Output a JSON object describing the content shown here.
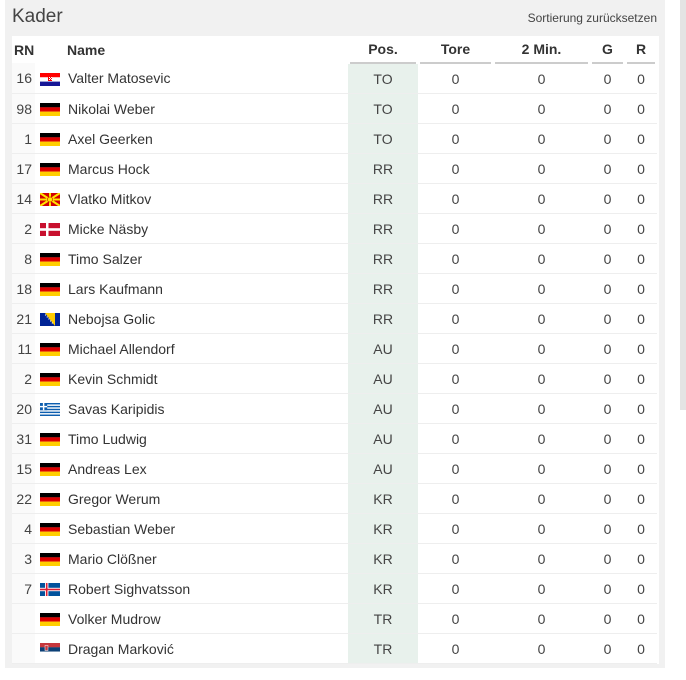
{
  "header": {
    "title": "Kader",
    "reset_link": "Sortierung zurücksetzen"
  },
  "table": {
    "columns": [
      "RN",
      "Name",
      "Pos.",
      "Tore",
      "2 Min.",
      "G",
      "R"
    ],
    "rows": [
      [
        16,
        "Valter Matosevic",
        "TO",
        0,
        0,
        0,
        0
      ],
      [
        98,
        "Nikolai Weber",
        "TO",
        0,
        0,
        0,
        0
      ],
      [
        1,
        "Axel Geerken",
        "TO",
        0,
        0,
        0,
        0
      ],
      [
        17,
        "Marcus Hock",
        "RR",
        0,
        0,
        0,
        0
      ],
      [
        14,
        "Vlatko Mitkov",
        "RR",
        0,
        0,
        0,
        0
      ],
      [
        2,
        "Micke Näsby",
        "RR",
        0,
        0,
        0,
        0
      ],
      [
        8,
        "Timo Salzer",
        "RR",
        0,
        0,
        0,
        0
      ],
      [
        18,
        "Lars Kaufmann",
        "RR",
        0,
        0,
        0,
        0
      ],
      [
        21,
        "Nebojsa Golic",
        "RR",
        0,
        0,
        0,
        0
      ],
      [
        11,
        "Michael Allendorf",
        "AU",
        0,
        0,
        0,
        0
      ],
      [
        2,
        "Kevin Schmidt",
        "AU",
        0,
        0,
        0,
        0
      ],
      [
        20,
        "Savas Karipidis",
        "AU",
        0,
        0,
        0,
        0
      ],
      [
        31,
        "Timo Ludwig",
        "AU",
        0,
        0,
        0,
        0
      ],
      [
        15,
        "Andreas Lex",
        "AU",
        0,
        0,
        0,
        0
      ],
      [
        22,
        "Gregor Werum",
        "KR",
        0,
        0,
        0,
        0
      ],
      [
        4,
        "Sebastian Weber",
        "KR",
        0,
        0,
        0,
        0
      ],
      [
        3,
        "Mario Clößner",
        "KR",
        0,
        0,
        0,
        0
      ],
      [
        7,
        "Robert Sighvatsson",
        "KR",
        0,
        0,
        0,
        0
      ],
      [
        null,
        "Volker Mudrow",
        "TR",
        0,
        0,
        0,
        0
      ],
      [
        null,
        "Dragan Marković",
        "TR",
        0,
        0,
        0,
        0
      ]
    ]
  }
}
